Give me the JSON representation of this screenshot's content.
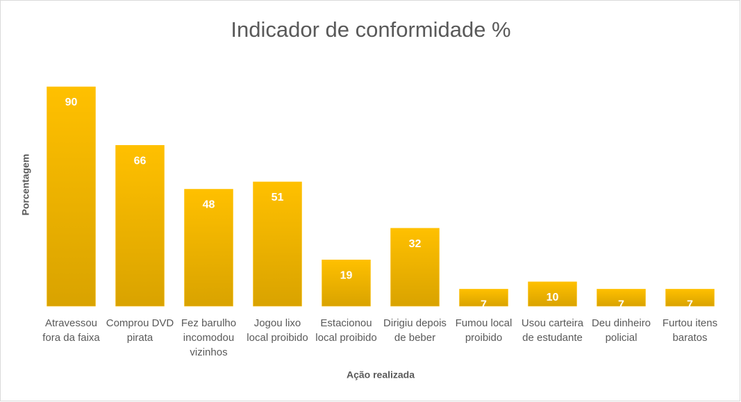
{
  "chart_data": {
    "type": "bar",
    "title": "Indicador de conformidade %",
    "x_label": "Ação realizada",
    "y_label": "Porcentagem",
    "categories": [
      "Atravessou fora da faixa",
      "Comprou DVD pirata",
      "Fez barulho incomodou vizinhos",
      "Jogou lixo local proibido",
      "Estacionou local proibido",
      "Dirigiu depois de beber",
      "Fumou local proibido",
      "Usou carteira de estudante",
      "Deu dinheiro policial",
      "Furtou itens baratos"
    ],
    "values": [
      90,
      66,
      48,
      51,
      19,
      32,
      7,
      10,
      7,
      7
    ],
    "color": "#ffc000"
  }
}
